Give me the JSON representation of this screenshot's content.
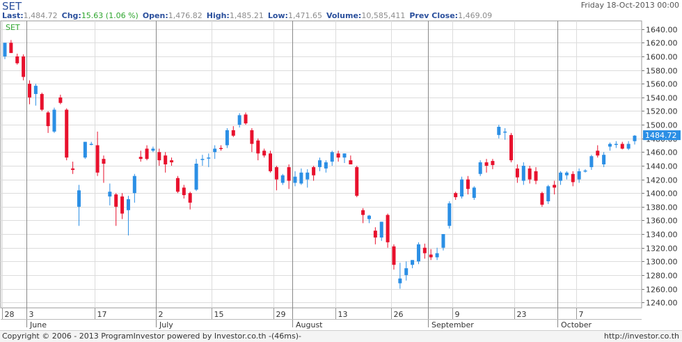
{
  "header": {
    "symbol": "SET",
    "date": "Friday 18-Oct-2013 00:00",
    "stats": [
      {
        "label": "Last:",
        "value": "1,484.72",
        "style": "val"
      },
      {
        "label": "Chg:",
        "value": "15.63 (1.06 %)",
        "style": "chg"
      },
      {
        "label": "Open:",
        "value": "1,476.82",
        "style": "val"
      },
      {
        "label": "High:",
        "value": "1,485.21",
        "style": "val"
      },
      {
        "label": "Low:",
        "value": "1,471.65",
        "style": "val"
      },
      {
        "label": "Volume:",
        "value": "10,585,411",
        "style": "val"
      },
      {
        "label": "Prev Close:",
        "value": "1,469.09",
        "style": "val"
      }
    ]
  },
  "legend": "SET",
  "last_price_label": "1484.72",
  "footer": {
    "copyright": "Copyright © 2006 - 2013 ProgramInvestor powered by Investor.co.th -(46ms)-",
    "url": "http://investor.co.th"
  },
  "colors": {
    "up": "#2b8fe5",
    "down": "#e8112d",
    "grid": "#dcdcdc",
    "label_bg": "#2b8fe5",
    "legend": "#2da52d",
    "axis_text": "#333333"
  },
  "chart_data": {
    "type": "candlestick",
    "ylim": [
      1232,
      1652
    ],
    "y_ticks": [
      1240,
      1260,
      1280,
      1300,
      1320,
      1340,
      1360,
      1380,
      1400,
      1420,
      1440,
      1460,
      1480,
      1500,
      1520,
      1540,
      1560,
      1580,
      1600,
      1620,
      1640
    ],
    "y_tick_labels": [
      "1240.00",
      "1260.00",
      "1280.00",
      "1300.00",
      "1320.00",
      "1340.00",
      "1360.00",
      "1380.00",
      "1400.00",
      "1420.00",
      "1440.00",
      "1460.00",
      "1480.00",
      "1500.00",
      "1520.00",
      "1540.00",
      "1560.00",
      "1580.00",
      "1600.00",
      "1620.00",
      "1640.00"
    ],
    "x_day_ticks": [
      {
        "index": 0,
        "label": "28"
      },
      {
        "index": 4,
        "label": "3"
      },
      {
        "index": 15,
        "label": "17"
      },
      {
        "index": 25,
        "label": "2"
      },
      {
        "index": 34,
        "label": "15"
      },
      {
        "index": 44,
        "label": "29"
      },
      {
        "index": 54,
        "label": "13"
      },
      {
        "index": 63,
        "label": "26"
      },
      {
        "index": 73,
        "label": "9"
      },
      {
        "index": 83,
        "label": "23"
      },
      {
        "index": 93,
        "label": "7"
      }
    ],
    "x_month_ticks": [
      {
        "index": 4,
        "label": "June"
      },
      {
        "index": 25,
        "label": "July"
      },
      {
        "index": 47,
        "label": "August"
      },
      {
        "index": 69,
        "label": "September"
      },
      {
        "index": 90,
        "label": "October"
      }
    ],
    "x_vlines": [
      4,
      25,
      47,
      69,
      90
    ],
    "candles": [
      {
        "o": 1600,
        "h": 1620,
        "l": 1596,
        "c": 1620
      },
      {
        "o": 1620,
        "h": 1624,
        "l": 1605,
        "c": 1605
      },
      {
        "o": 1600,
        "h": 1604,
        "l": 1588,
        "c": 1590
      },
      {
        "o": 1600,
        "h": 1603,
        "l": 1565,
        "c": 1570
      },
      {
        "o": 1560,
        "h": 1565,
        "l": 1530,
        "c": 1540
      },
      {
        "o": 1545,
        "h": 1560,
        "l": 1528,
        "c": 1557
      },
      {
        "o": 1545,
        "h": 1547,
        "l": 1520,
        "c": 1522
      },
      {
        "o": 1518,
        "h": 1520,
        "l": 1488,
        "c": 1498
      },
      {
        "o": 1490,
        "h": 1525,
        "l": 1488,
        "c": 1522
      },
      {
        "o": 1540,
        "h": 1544,
        "l": 1530,
        "c": 1532
      },
      {
        "o": 1522,
        "h": 1524,
        "l": 1448,
        "c": 1452
      },
      {
        "o": 1436,
        "h": 1446,
        "l": 1428,
        "c": 1434
      },
      {
        "o": 1380,
        "h": 1412,
        "l": 1352,
        "c": 1404
      },
      {
        "o": 1452,
        "h": 1475,
        "l": 1450,
        "c": 1475
      },
      {
        "o": 1472,
        "h": 1475,
        "l": 1470,
        "c": 1472
      },
      {
        "o": 1470,
        "h": 1490,
        "l": 1425,
        "c": 1430
      },
      {
        "o": 1450,
        "h": 1455,
        "l": 1415,
        "c": 1443
      },
      {
        "o": 1395,
        "h": 1414,
        "l": 1382,
        "c": 1402
      },
      {
        "o": 1398,
        "h": 1400,
        "l": 1352,
        "c": 1380
      },
      {
        "o": 1395,
        "h": 1400,
        "l": 1362,
        "c": 1370
      },
      {
        "o": 1375,
        "h": 1396,
        "l": 1338,
        "c": 1391
      },
      {
        "o": 1400,
        "h": 1428,
        "l": 1386,
        "c": 1425
      },
      {
        "o": 1453,
        "h": 1462,
        "l": 1446,
        "c": 1450
      },
      {
        "o": 1465,
        "h": 1470,
        "l": 1448,
        "c": 1450
      },
      {
        "o": 1462,
        "h": 1468,
        "l": 1460,
        "c": 1465
      },
      {
        "o": 1460,
        "h": 1465,
        "l": 1440,
        "c": 1448
      },
      {
        "o": 1455,
        "h": 1460,
        "l": 1430,
        "c": 1442
      },
      {
        "o": 1448,
        "h": 1452,
        "l": 1440,
        "c": 1445
      },
      {
        "o": 1422,
        "h": 1425,
        "l": 1400,
        "c": 1402
      },
      {
        "o": 1408,
        "h": 1412,
        "l": 1392,
        "c": 1397
      },
      {
        "o": 1400,
        "h": 1402,
        "l": 1376,
        "c": 1386
      },
      {
        "o": 1405,
        "h": 1450,
        "l": 1403,
        "c": 1443
      },
      {
        "o": 1450,
        "h": 1456,
        "l": 1440,
        "c": 1450
      },
      {
        "o": 1452,
        "h": 1458,
        "l": 1438,
        "c": 1452
      },
      {
        "o": 1460,
        "h": 1470,
        "l": 1450,
        "c": 1465
      },
      {
        "o": 1466,
        "h": 1470,
        "l": 1462,
        "c": 1465
      },
      {
        "o": 1470,
        "h": 1495,
        "l": 1466,
        "c": 1492
      },
      {
        "o": 1492,
        "h": 1498,
        "l": 1482,
        "c": 1484
      },
      {
        "o": 1500,
        "h": 1517,
        "l": 1496,
        "c": 1514
      },
      {
        "o": 1515,
        "h": 1518,
        "l": 1500,
        "c": 1502
      },
      {
        "o": 1492,
        "h": 1495,
        "l": 1460,
        "c": 1472
      },
      {
        "o": 1477,
        "h": 1480,
        "l": 1448,
        "c": 1458
      },
      {
        "o": 1462,
        "h": 1465,
        "l": 1452,
        "c": 1455
      },
      {
        "o": 1458,
        "h": 1462,
        "l": 1430,
        "c": 1432
      },
      {
        "o": 1438,
        "h": 1440,
        "l": 1404,
        "c": 1420
      },
      {
        "o": 1415,
        "h": 1428,
        "l": 1412,
        "c": 1426
      },
      {
        "o": 1438,
        "h": 1442,
        "l": 1406,
        "c": 1418
      },
      {
        "o": 1415,
        "h": 1432,
        "l": 1410,
        "c": 1424
      },
      {
        "o": 1414,
        "h": 1436,
        "l": 1412,
        "c": 1430
      },
      {
        "o": 1420,
        "h": 1435,
        "l": 1408,
        "c": 1430
      },
      {
        "o": 1438,
        "h": 1440,
        "l": 1418,
        "c": 1426
      },
      {
        "o": 1438,
        "h": 1452,
        "l": 1432,
        "c": 1448
      },
      {
        "o": 1436,
        "h": 1448,
        "l": 1430,
        "c": 1445
      },
      {
        "o": 1446,
        "h": 1462,
        "l": 1440,
        "c": 1460
      },
      {
        "o": 1458,
        "h": 1462,
        "l": 1446,
        "c": 1452
      },
      {
        "o": 1452,
        "h": 1458,
        "l": 1444,
        "c": 1458
      },
      {
        "o": 1448,
        "h": 1455,
        "l": 1442,
        "c": 1442
      },
      {
        "o": 1438,
        "h": 1440,
        "l": 1394,
        "c": 1396
      },
      {
        "o": 1375,
        "h": 1378,
        "l": 1356,
        "c": 1368
      },
      {
        "o": 1362,
        "h": 1368,
        "l": 1356,
        "c": 1367
      },
      {
        "o": 1345,
        "h": 1350,
        "l": 1325,
        "c": 1335
      },
      {
        "o": 1335,
        "h": 1358,
        "l": 1330,
        "c": 1358
      },
      {
        "o": 1368,
        "h": 1370,
        "l": 1320,
        "c": 1328
      },
      {
        "o": 1322,
        "h": 1325,
        "l": 1288,
        "c": 1295
      },
      {
        "o": 1268,
        "h": 1298,
        "l": 1260,
        "c": 1275
      },
      {
        "o": 1280,
        "h": 1300,
        "l": 1272,
        "c": 1290
      },
      {
        "o": 1295,
        "h": 1302,
        "l": 1290,
        "c": 1302
      },
      {
        "o": 1300,
        "h": 1328,
        "l": 1296,
        "c": 1325
      },
      {
        "o": 1320,
        "h": 1326,
        "l": 1304,
        "c": 1312
      },
      {
        "o": 1310,
        "h": 1318,
        "l": 1302,
        "c": 1306
      },
      {
        "o": 1306,
        "h": 1320,
        "l": 1302,
        "c": 1312
      },
      {
        "o": 1320,
        "h": 1340,
        "l": 1316,
        "c": 1340
      },
      {
        "o": 1352,
        "h": 1388,
        "l": 1348,
        "c": 1385
      },
      {
        "o": 1400,
        "h": 1402,
        "l": 1390,
        "c": 1394
      },
      {
        "o": 1395,
        "h": 1424,
        "l": 1392,
        "c": 1420
      },
      {
        "o": 1420,
        "h": 1425,
        "l": 1398,
        "c": 1406
      },
      {
        "o": 1393,
        "h": 1410,
        "l": 1390,
        "c": 1408
      },
      {
        "o": 1428,
        "h": 1448,
        "l": 1425,
        "c": 1445
      },
      {
        "o": 1445,
        "h": 1450,
        "l": 1430,
        "c": 1440
      },
      {
        "o": 1447,
        "h": 1450,
        "l": 1435,
        "c": 1441
      },
      {
        "o": 1485,
        "h": 1500,
        "l": 1480,
        "c": 1497
      },
      {
        "o": 1490,
        "h": 1495,
        "l": 1478,
        "c": 1490
      },
      {
        "o": 1485,
        "h": 1488,
        "l": 1445,
        "c": 1448
      },
      {
        "o": 1436,
        "h": 1442,
        "l": 1415,
        "c": 1423
      },
      {
        "o": 1418,
        "h": 1445,
        "l": 1412,
        "c": 1440
      },
      {
        "o": 1436,
        "h": 1440,
        "l": 1414,
        "c": 1420
      },
      {
        "o": 1432,
        "h": 1438,
        "l": 1413,
        "c": 1418
      },
      {
        "o": 1400,
        "h": 1402,
        "l": 1380,
        "c": 1383
      },
      {
        "o": 1388,
        "h": 1412,
        "l": 1384,
        "c": 1410
      },
      {
        "o": 1412,
        "h": 1418,
        "l": 1398,
        "c": 1408
      },
      {
        "o": 1418,
        "h": 1432,
        "l": 1412,
        "c": 1430
      },
      {
        "o": 1426,
        "h": 1432,
        "l": 1420,
        "c": 1430
      },
      {
        "o": 1428,
        "h": 1432,
        "l": 1410,
        "c": 1416
      },
      {
        "o": 1420,
        "h": 1436,
        "l": 1415,
        "c": 1432
      },
      {
        "o": 1433,
        "h": 1435,
        "l": 1430,
        "c": 1433
      },
      {
        "o": 1438,
        "h": 1456,
        "l": 1434,
        "c": 1454
      },
      {
        "o": 1462,
        "h": 1470,
        "l": 1452,
        "c": 1455
      },
      {
        "o": 1442,
        "h": 1460,
        "l": 1438,
        "c": 1456
      },
      {
        "o": 1468,
        "h": 1474,
        "l": 1462,
        "c": 1472
      },
      {
        "o": 1472,
        "h": 1476,
        "l": 1466,
        "c": 1472
      },
      {
        "o": 1472,
        "h": 1475,
        "l": 1464,
        "c": 1465
      },
      {
        "o": 1465,
        "h": 1476,
        "l": 1463,
        "c": 1472
      },
      {
        "o": 1476,
        "h": 1485,
        "l": 1471,
        "c": 1484
      }
    ],
    "last_value": 1484.72
  }
}
